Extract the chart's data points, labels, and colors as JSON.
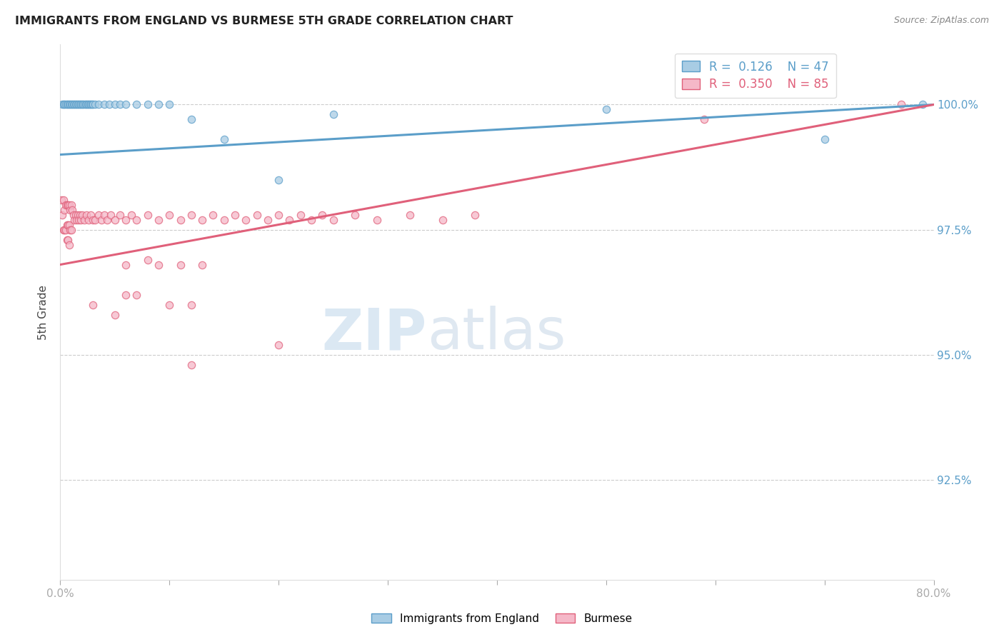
{
  "title": "IMMIGRANTS FROM ENGLAND VS BURMESE 5TH GRADE CORRELATION CHART",
  "source": "Source: ZipAtlas.com",
  "ylabel": "5th Grade",
  "xlim": [
    0.0,
    0.8
  ],
  "ylim": [
    0.905,
    1.012
  ],
  "watermark_zip": "ZIP",
  "watermark_atlas": "atlas",
  "legend1_label": "Immigrants from England",
  "legend2_label": "Burmese",
  "R1": 0.126,
  "N1": 47,
  "R2": 0.35,
  "N2": 85,
  "color_blue_face": "#a8cce4",
  "color_blue_edge": "#5b9ec9",
  "color_pink_face": "#f5b8c8",
  "color_pink_edge": "#e0607a",
  "line_blue": "#5b9ec9",
  "line_pink": "#e0607a",
  "yticks": [
    0.925,
    0.95,
    0.975,
    1.0
  ],
  "ytick_labels": [
    "92.5%",
    "95.0%",
    "97.5%",
    "100.0%"
  ],
  "eng_x": [
    0.002,
    0.003,
    0.004,
    0.005,
    0.006,
    0.007,
    0.008,
    0.009,
    0.01,
    0.011,
    0.012,
    0.013,
    0.014,
    0.015,
    0.016,
    0.017,
    0.018,
    0.019,
    0.02,
    0.021,
    0.022,
    0.023,
    0.024,
    0.025,
    0.026,
    0.027,
    0.028,
    0.029,
    0.03,
    0.032,
    0.035,
    0.04,
    0.045,
    0.05,
    0.055,
    0.06,
    0.07,
    0.08,
    0.09,
    0.1,
    0.12,
    0.15,
    0.2,
    0.25,
    0.5,
    0.7,
    0.79
  ],
  "eng_y": [
    1.0,
    1.0,
    1.0,
    1.0,
    1.0,
    1.0,
    1.0,
    1.0,
    1.0,
    1.0,
    1.0,
    1.0,
    1.0,
    1.0,
    1.0,
    1.0,
    1.0,
    1.0,
    1.0,
    1.0,
    1.0,
    1.0,
    1.0,
    1.0,
    1.0,
    1.0,
    1.0,
    1.0,
    1.0,
    1.0,
    1.0,
    1.0,
    1.0,
    1.0,
    1.0,
    1.0,
    1.0,
    1.0,
    1.0,
    1.0,
    0.997,
    0.993,
    0.985,
    0.998,
    0.999,
    0.993,
    1.0
  ],
  "bur_x": [
    0.001,
    0.002,
    0.003,
    0.003,
    0.004,
    0.004,
    0.005,
    0.005,
    0.006,
    0.006,
    0.006,
    0.007,
    0.007,
    0.007,
    0.008,
    0.008,
    0.008,
    0.009,
    0.009,
    0.01,
    0.01,
    0.011,
    0.012,
    0.013,
    0.014,
    0.015,
    0.016,
    0.017,
    0.018,
    0.019,
    0.02,
    0.022,
    0.024,
    0.026,
    0.028,
    0.03,
    0.032,
    0.035,
    0.038,
    0.04,
    0.043,
    0.046,
    0.05,
    0.055,
    0.06,
    0.065,
    0.07,
    0.08,
    0.09,
    0.1,
    0.11,
    0.12,
    0.13,
    0.14,
    0.15,
    0.16,
    0.17,
    0.18,
    0.19,
    0.2,
    0.21,
    0.22,
    0.23,
    0.24,
    0.25,
    0.27,
    0.29,
    0.32,
    0.35,
    0.38,
    0.05,
    0.06,
    0.12,
    0.2,
    0.59,
    0.08,
    0.03,
    0.06,
    0.07,
    0.09,
    0.1,
    0.11,
    0.12,
    0.13,
    0.77
  ],
  "bur_y": [
    0.981,
    0.978,
    0.981,
    0.975,
    0.979,
    0.975,
    0.98,
    0.975,
    0.98,
    0.976,
    0.973,
    0.98,
    0.976,
    0.973,
    0.98,
    0.976,
    0.972,
    0.979,
    0.975,
    0.98,
    0.975,
    0.979,
    0.978,
    0.977,
    0.978,
    0.977,
    0.978,
    0.977,
    0.978,
    0.977,
    0.978,
    0.977,
    0.978,
    0.977,
    0.978,
    0.977,
    0.977,
    0.978,
    0.977,
    0.978,
    0.977,
    0.978,
    0.977,
    0.978,
    0.977,
    0.978,
    0.977,
    0.978,
    0.977,
    0.978,
    0.977,
    0.978,
    0.977,
    0.978,
    0.977,
    0.978,
    0.977,
    0.978,
    0.977,
    0.978,
    0.977,
    0.978,
    0.977,
    0.978,
    0.977,
    0.978,
    0.977,
    0.978,
    0.977,
    0.978,
    0.958,
    0.962,
    0.948,
    0.952,
    0.997,
    0.969,
    0.96,
    0.968,
    0.962,
    0.968,
    0.96,
    0.968,
    0.96,
    0.968,
    1.0
  ],
  "line_eng_x0": 0.0,
  "line_eng_x1": 0.8,
  "line_eng_y0": 0.99,
  "line_eng_y1": 1.0,
  "line_bur_x0": 0.0,
  "line_bur_x1": 0.8,
  "line_bur_y0": 0.968,
  "line_bur_y1": 1.0
}
